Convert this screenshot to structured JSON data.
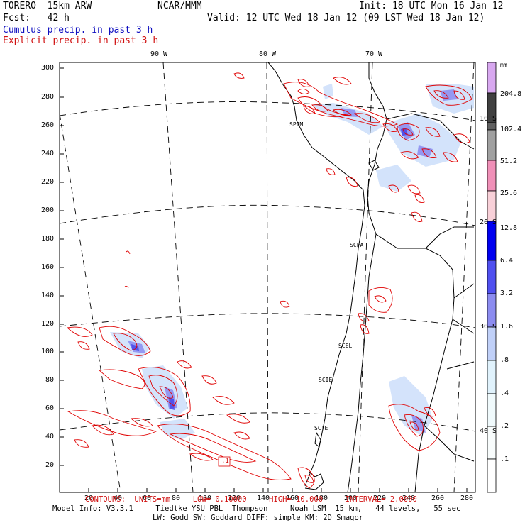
{
  "header": {
    "model": "TORERO  15km ARW",
    "center": "NCAR/MMM",
    "init": "Init: 18 UTC Mon 16 Jan 12",
    "fcst": "Fcst:   42 h",
    "valid": "Valid: 12 UTC Wed 18 Jan 12 (09 LST Wed 18 Jan 12)",
    "cumulus_legend": "Cumulus precip. in past 3 h",
    "explicit_legend": "Explicit precip. in past 3 h"
  },
  "longitudes": [
    {
      "label": "90 W"
    },
    {
      "label": "80 W"
    },
    {
      "label": "70 W"
    }
  ],
  "latitudes": [
    {
      "label": "10 S"
    },
    {
      "label": "20 S"
    },
    {
      "label": "30 S"
    },
    {
      "label": "40 S"
    }
  ],
  "y_ticks": [
    "300",
    "280",
    "260",
    "240",
    "220",
    "200",
    "180",
    "160",
    "140",
    "120",
    "100",
    "80",
    "60",
    "40",
    "20"
  ],
  "x_ticks": [
    "20",
    "40",
    "60",
    "80",
    "100",
    "120",
    "140",
    "160",
    "180",
    "200",
    "220",
    "240",
    "260",
    "280"
  ],
  "stations": [
    "SPIM",
    "SCFA",
    "SCEL",
    "SCIE",
    "SCTE"
  ],
  "contour_label": ".1",
  "colorbar": {
    "unit": "mm",
    "labels": [
      "204.8",
      "102.4",
      "51.2",
      "25.6",
      "12.8",
      "6.4",
      "3.2",
      "1.6",
      ".8",
      ".4",
      ".2",
      ".1"
    ],
    "colors": [
      "#d8a8f0",
      "#404040",
      "#a0a0a0",
      "#c8c8c8",
      "#f090b8",
      "#f8d0d8",
      "#0000f0",
      "#5050f0",
      "#8c8cf0",
      "#c0c8f8",
      "#e0ecfc",
      "#f0fafc",
      "#f8fcfc",
      "#ffffff"
    ]
  },
  "footer": {
    "contours": "CONTOURS:  UNITS=mm     LOW= 0.10000     HIGH= 10.000     INTERVAL= 2.0000",
    "line1": "Model Info: V3.3.1     Tiedtke YSU PBL  Thompson     Noah LSM  15 km,   44 levels,   55 sec",
    "line2": "LW: Godd SW: Goddard DIFF: simple KM: 2D Smagor"
  }
}
